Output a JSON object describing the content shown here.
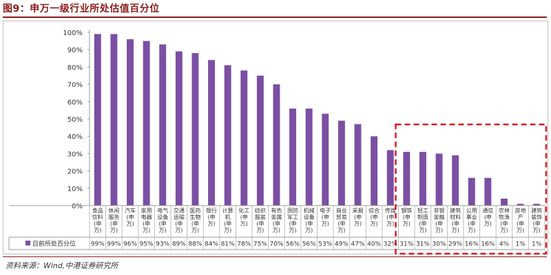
{
  "header": {
    "title": "图9：申万一级行业所处估值百分位"
  },
  "footer": {
    "source": "资料来源：Wind,中港证券研究所"
  },
  "colors": {
    "bar": "#7B4FA3",
    "title": "#8B1A1A",
    "highlight_box": "#D71920",
    "grid": "#d9d9d9"
  },
  "chart_data": {
    "type": "bar",
    "title": "",
    "xlabel": "",
    "ylabel": "",
    "ylim": [
      0,
      100
    ],
    "ytick_labels": [
      "0%",
      "10%",
      "20%",
      "30%",
      "40%",
      "50%",
      "60%",
      "70%",
      "80%",
      "90%",
      "100%"
    ],
    "categories": [
      "食品饮料(申万)",
      "休闲服务(申万)",
      "汽车(申万)",
      "家用电器(申万)",
      "电气设备(申万)",
      "交通运输(申万)",
      "医药生物(申万)",
      "银行(申万)",
      "计算机(申万)",
      "化工(申万)",
      "纺织服装(申万)",
      "有色金属(申万)",
      "国防军工(申万)",
      "机械设备(申万)",
      "电子(申万)",
      "商业贸易(申万)",
      "采掘(申万)",
      "综合(申万)",
      "传媒(申万)",
      "钢铁(申万)",
      "轻工制造(申万)",
      "非银金融(申万)",
      "建筑材料(申万)",
      "公用事业(申万)",
      "通信(申万)",
      "农林牧渔(申万)",
      "房地产(申万)",
      "建筑装饰(申万)"
    ],
    "series": [
      {
        "name": "目前所处百分位",
        "values": [
          99,
          99,
          96,
          95,
          93,
          89,
          88,
          84,
          81,
          78,
          75,
          70,
          56,
          56,
          53,
          49,
          47,
          40,
          32,
          31,
          31,
          30,
          29,
          16,
          16,
          4,
          1,
          1
        ],
        "value_labels": [
          "99%",
          "99%",
          "96%",
          "95%",
          "93%",
          "89%",
          "88%",
          "84%",
          "81%",
          "78%",
          "75%",
          "70%",
          "56%",
          "56%",
          "53%",
          "49%",
          "47%",
          "40%",
          "32%",
          "31%",
          "31%",
          "30%",
          "29%",
          "16%",
          "16%",
          "4%",
          "1%",
          "1%"
        ]
      }
    ],
    "highlight_range": [
      19,
      27
    ],
    "grid": false,
    "legend": "bottom-left"
  }
}
